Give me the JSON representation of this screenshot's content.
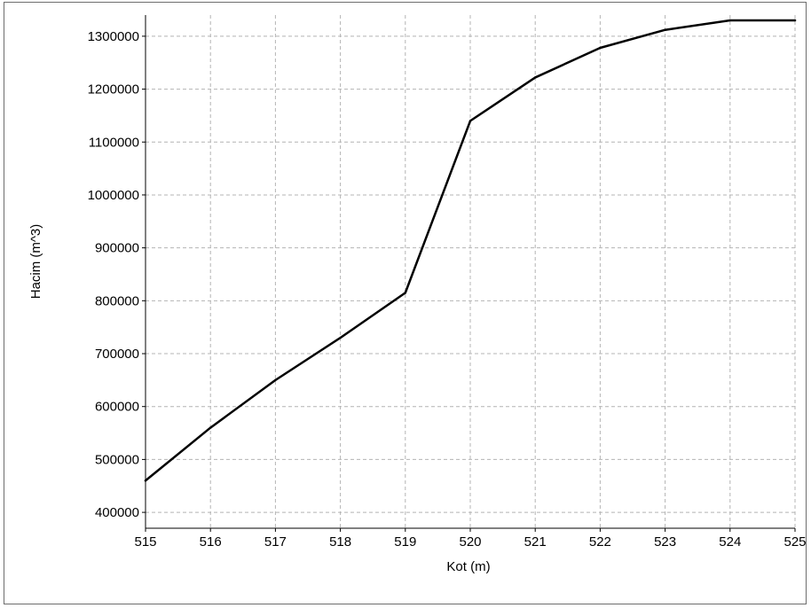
{
  "chart_data": {
    "type": "line",
    "xlabel": "Kot (m)",
    "ylabel": "Hacim (m^3)",
    "xlim": [
      515,
      525
    ],
    "ylim": [
      370000,
      1340000
    ],
    "x_ticks": [
      "515",
      "516",
      "517",
      "518",
      "519",
      "520",
      "521",
      "522",
      "523",
      "524",
      "525"
    ],
    "y_ticks": [
      "400000",
      "500000",
      "600000",
      "700000",
      "800000",
      "900000",
      "1000000",
      "1100000",
      "1200000",
      "1300000"
    ],
    "grid": true,
    "series": [
      {
        "color": "#000000",
        "x": [
          515,
          516,
          517,
          518,
          519,
          520,
          521,
          522,
          523,
          524,
          525
        ],
        "y": [
          460000,
          560000,
          650000,
          730000,
          815000,
          1140000,
          1222000,
          1278000,
          1312000,
          1330000,
          1330000
        ]
      }
    ]
  }
}
